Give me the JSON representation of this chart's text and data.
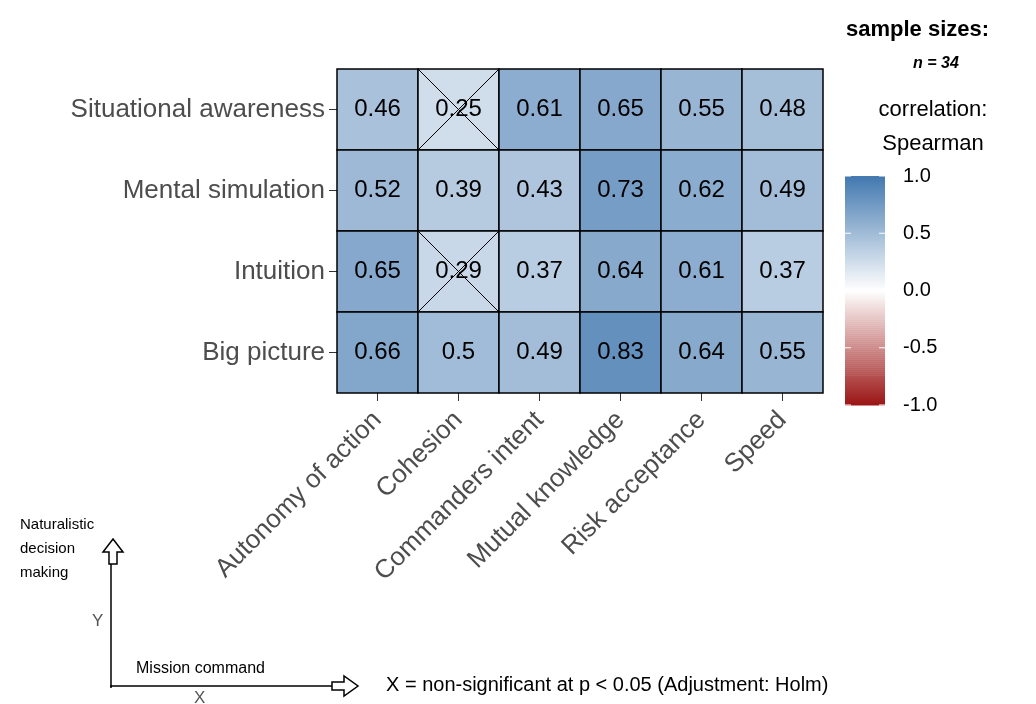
{
  "chart_data": {
    "type": "heatmap",
    "categories": [
      "Autonomy of action",
      "Cohesion",
      "Commanders intent",
      "Mutual knowledge",
      "Risk acceptance",
      "Speed"
    ],
    "y_categories": [
      "Situational awareness",
      "Mental simulation",
      "Intuition",
      "Big picture"
    ],
    "cells": [
      [
        0.46,
        0.25,
        0.61,
        0.65,
        0.55,
        0.48
      ],
      [
        0.52,
        0.39,
        0.43,
        0.73,
        0.62,
        0.49
      ],
      [
        0.65,
        0.29,
        0.37,
        0.64,
        0.61,
        0.37
      ],
      [
        0.66,
        0.5,
        0.49,
        0.83,
        0.64,
        0.55
      ]
    ],
    "data_labels": true,
    "clim": [
      -1,
      1
    ],
    "cticks": [
      {
        "value": 1,
        "label": "1.0"
      },
      {
        "value": 0.5,
        "label": "0.5"
      },
      {
        "value": 0,
        "label": "0.0"
      },
      {
        "value": -0.5,
        "label": "-0.5"
      },
      {
        "value": -1,
        "label": "-1.0"
      }
    ],
    "clabel": "correlation: Spearman",
    "xlabel": "Mission command",
    "ylabel": "Naturalistic decision making",
    "annotations": [
      "sample sizes:",
      "n = 34",
      "X = non-significant at p < 0.05 (Adjustment: Holm)",
      "Y",
      "X"
    ]
  }
}
